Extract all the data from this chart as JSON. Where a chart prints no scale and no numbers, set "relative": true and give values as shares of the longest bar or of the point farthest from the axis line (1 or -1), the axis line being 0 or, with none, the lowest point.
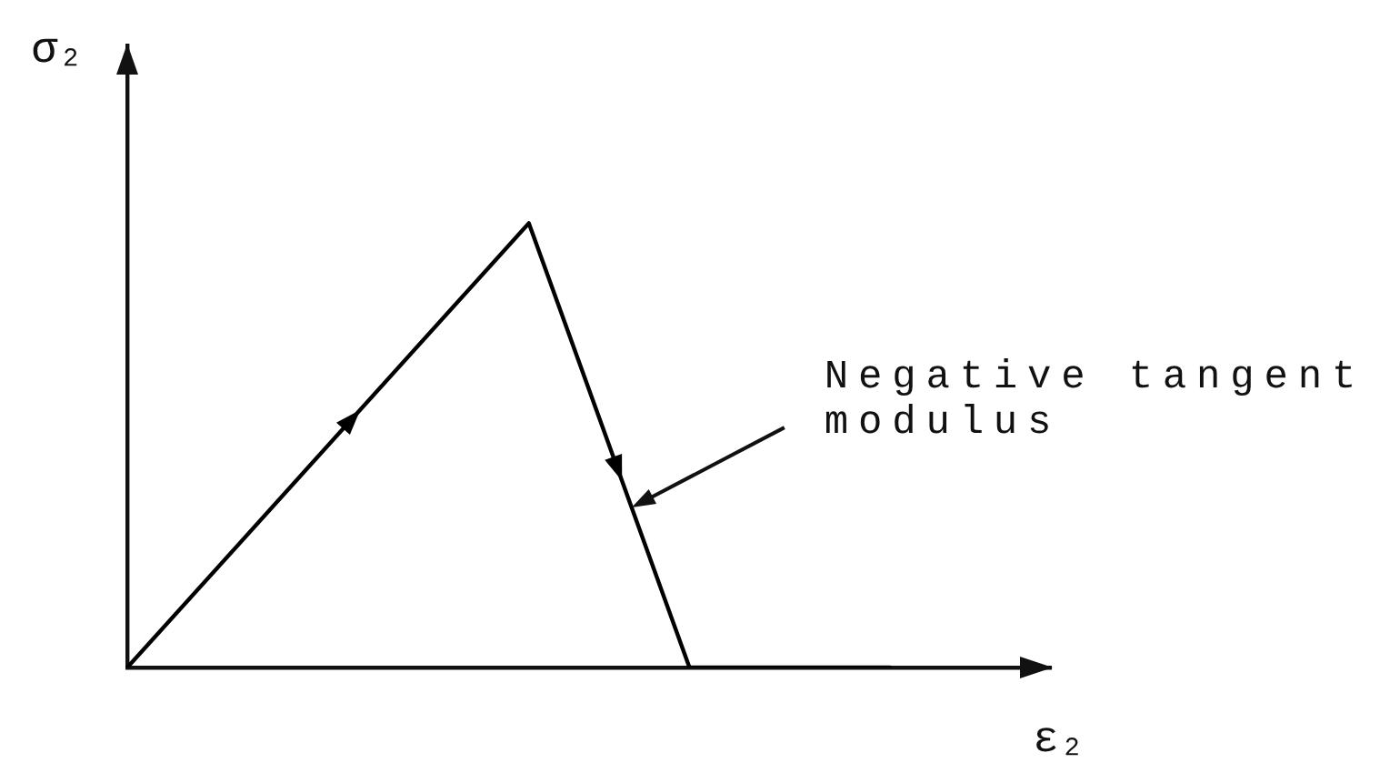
{
  "chart_data": {
    "type": "line",
    "relative": true,
    "xlabel": "ε₂",
    "ylabel": "σ₂",
    "categories": [
      null,
      null,
      null,
      null,
      null,
      null,
      null,
      null,
      null,
      null,
      null,
      null,
      null,
      null,
      null,
      null,
      null,
      null,
      null,
      null,
      null,
      null,
      null,
      null
    ],
    "series": [
      {
        "color": "#000000",
        "values": [
          0,
          null,
          null,
          null,
          null,
          null,
          null,
          null,
          null,
          null,
          1,
          null,
          null,
          null,
          0,
          null,
          null,
          null,
          null,
          0,
          null,
          null,
          null,
          null
        ]
      }
    ],
    "annotations": [
      "Negative tangent modulus"
    ],
    "grid": false,
    "marker": "none",
    "line_style": "solid",
    "tick_labels": false
  }
}
